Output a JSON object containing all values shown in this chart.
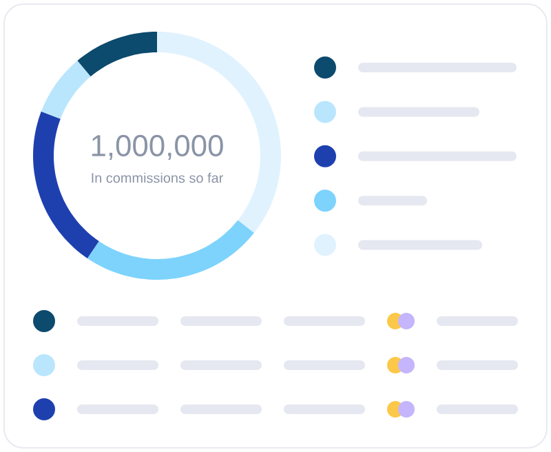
{
  "chart_data": {
    "type": "donut",
    "categories": [
      null,
      null,
      null,
      null,
      null
    ],
    "values": [
      35.7,
      23.8,
      21.3,
      8.1,
      11.1
    ],
    "colors": [
      "#e0f2fe",
      "#7dd3fc",
      "#1e40af",
      "#bae6fd",
      "#0c4a6e"
    ],
    "annotations": [
      "1,000,000",
      "In commissions so far"
    ]
  }
}
